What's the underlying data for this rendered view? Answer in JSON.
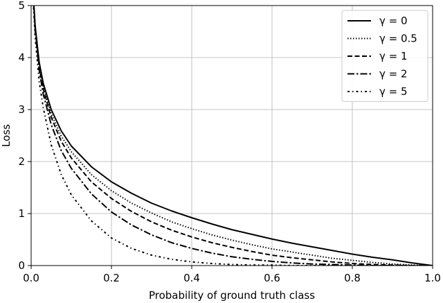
{
  "chart_data": {
    "type": "line",
    "title": "",
    "xlabel": "Probability of ground truth class",
    "ylabel": "Loss",
    "xlim": [
      0.0,
      1.0
    ],
    "ylim": [
      0,
      5
    ],
    "xticks": [
      "0.0",
      "0.2",
      "0.4",
      "0.6",
      "0.8",
      "1.0"
    ],
    "yticks": [
      "0",
      "1",
      "2",
      "3",
      "4",
      "5"
    ],
    "grid": true,
    "legend_position": "top-right",
    "x": [
      0.01,
      0.02,
      0.03,
      0.05,
      0.075,
      0.1,
      0.15,
      0.2,
      0.25,
      0.3,
      0.35,
      0.4,
      0.45,
      0.5,
      0.55,
      0.6,
      0.65,
      0.7,
      0.75,
      0.8,
      0.85,
      0.9,
      0.95,
      1.0
    ],
    "series": [
      {
        "name": "γ = 0",
        "dash": "solid",
        "values": [
          4.61,
          3.91,
          3.51,
          3.0,
          2.59,
          2.3,
          1.9,
          1.61,
          1.39,
          1.2,
          1.05,
          0.92,
          0.8,
          0.69,
          0.6,
          0.51,
          0.43,
          0.36,
          0.29,
          0.22,
          0.16,
          0.11,
          0.05,
          0.0
        ]
      },
      {
        "name": "γ = 0.5",
        "dash": "dotted",
        "values": [
          4.58,
          3.87,
          3.45,
          2.92,
          2.49,
          2.19,
          1.75,
          1.44,
          1.2,
          1.01,
          0.84,
          0.71,
          0.59,
          0.49,
          0.4,
          0.32,
          0.26,
          0.2,
          0.14,
          0.1,
          0.06,
          0.03,
          0.01,
          0.0
        ]
      },
      {
        "name": "γ = 1",
        "dash": "dashed",
        "values": [
          4.56,
          3.83,
          3.4,
          2.85,
          2.39,
          2.07,
          1.61,
          1.29,
          1.04,
          0.84,
          0.68,
          0.55,
          0.44,
          0.35,
          0.27,
          0.2,
          0.15,
          0.11,
          0.07,
          0.04,
          0.02,
          0.01,
          0.0,
          0.0
        ]
      },
      {
        "name": "γ = 2",
        "dash": "dashdot",
        "values": [
          4.52,
          3.76,
          3.3,
          2.71,
          2.21,
          1.87,
          1.38,
          1.03,
          0.78,
          0.59,
          0.44,
          0.33,
          0.24,
          0.17,
          0.12,
          0.08,
          0.05,
          0.03,
          0.02,
          0.01,
          0.0,
          0.0,
          0.0,
          0.0
        ]
      },
      {
        "name": "γ = 5",
        "dash": "loosedashdot",
        "values": [
          4.38,
          3.54,
          3.04,
          2.32,
          1.75,
          1.36,
          0.86,
          0.53,
          0.33,
          0.2,
          0.12,
          0.07,
          0.04,
          0.02,
          0.01,
          0.01,
          0.0,
          0.0,
          0.0,
          0.0,
          0.0,
          0.0,
          0.0,
          0.0
        ]
      }
    ]
  }
}
